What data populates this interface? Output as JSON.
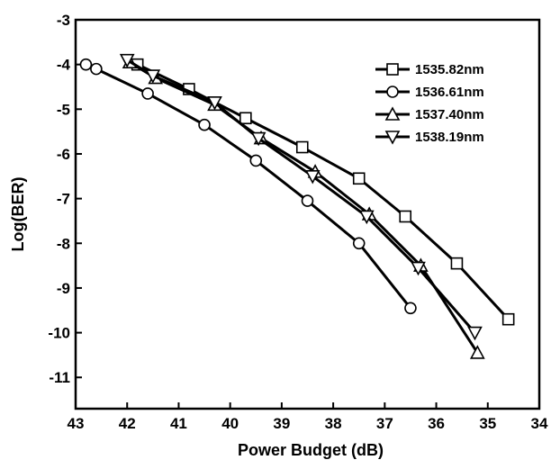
{
  "chart_data": {
    "type": "line",
    "xlabel": "Power Budget (dB)",
    "ylabel": "Log(BER)",
    "xlim": [
      43,
      34
    ],
    "ylim": [
      -11.7,
      -3
    ],
    "x_reversed": true,
    "x_ticks": [
      "43",
      "42",
      "41",
      "40",
      "39",
      "38",
      "37",
      "36",
      "35",
      "34"
    ],
    "y_ticks": [
      "-3",
      "-4",
      "-5",
      "-6",
      "-7",
      "-8",
      "-9",
      "-10",
      "-11"
    ],
    "legend_position": "top-right",
    "series": [
      {
        "name": "1535.82nm",
        "marker": "square",
        "x": [
          41.8,
          40.8,
          39.7,
          38.6,
          37.5,
          36.6,
          35.6,
          34.6
        ],
        "y": [
          -4.0,
          -4.55,
          -5.2,
          -5.85,
          -6.55,
          -7.4,
          -8.45,
          -9.7
        ]
      },
      {
        "name": "1536.61nm",
        "marker": "circle",
        "x": [
          42.8,
          42.6,
          41.6,
          40.5,
          39.5,
          38.5,
          37.5,
          36.5
        ],
        "y": [
          -4.0,
          -4.1,
          -4.65,
          -5.35,
          -6.15,
          -7.05,
          -8.0,
          -9.45
        ]
      },
      {
        "name": "1537.40nm",
        "marker": "triangle-up",
        "x": [
          41.95,
          41.45,
          40.3,
          39.4,
          38.35,
          37.3,
          36.3,
          35.2
        ],
        "y": [
          -3.95,
          -4.3,
          -4.9,
          -5.65,
          -6.4,
          -7.35,
          -8.5,
          -10.45
        ]
      },
      {
        "name": "1538.19nm",
        "marker": "triangle-down",
        "x": [
          42.0,
          41.5,
          40.3,
          39.45,
          38.4,
          37.35,
          36.35,
          35.25
        ],
        "y": [
          -3.9,
          -4.25,
          -4.85,
          -5.65,
          -6.5,
          -7.4,
          -8.55,
          -10.0
        ]
      }
    ]
  }
}
